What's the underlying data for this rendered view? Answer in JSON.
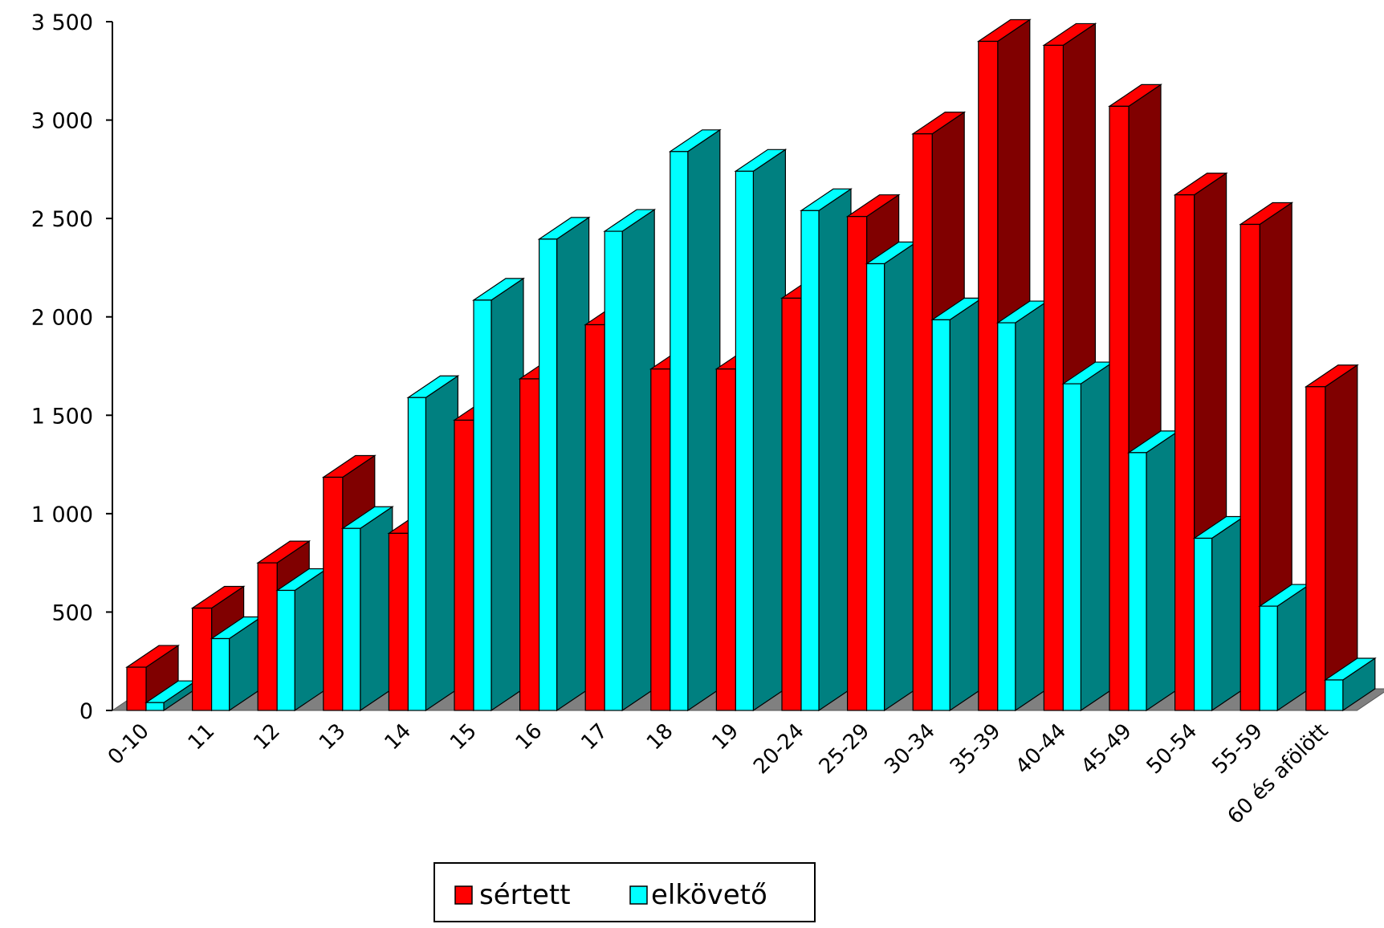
{
  "chart_data": {
    "type": "bar",
    "style": "3d-clustered-column",
    "categories": [
      "0-10",
      "11",
      "12",
      "13",
      "14",
      "15",
      "16",
      "17",
      "18",
      "19",
      "20-24",
      "25-29",
      "30-34",
      "35-39",
      "40-44",
      "45-49",
      "50-54",
      "55-59",
      "60 és afölött"
    ],
    "series": [
      {
        "name": "sértett",
        "color": "#ff0000",
        "side_color": "#800000",
        "values": [
          220,
          520,
          750,
          1185,
          900,
          1475,
          1685,
          1960,
          1735,
          1735,
          2095,
          2510,
          2930,
          3400,
          3380,
          3070,
          2620,
          2470,
          1645
        ]
      },
      {
        "name": "elkövető",
        "color": "#00ffff",
        "side_color": "#008080",
        "values": [
          40,
          365,
          610,
          925,
          1590,
          2085,
          2395,
          2435,
          2840,
          2740,
          2540,
          2270,
          1985,
          1970,
          1660,
          1310,
          875,
          530,
          155
        ]
      }
    ],
    "y_ticks": [
      "0",
      "500",
      "1 000",
      "1 500",
      "2 000",
      "2 500",
      "3 000",
      "3 500"
    ],
    "ylim": [
      0,
      3500
    ],
    "legend_position": "bottom-center",
    "grid": false,
    "floor_color": "#808080"
  }
}
